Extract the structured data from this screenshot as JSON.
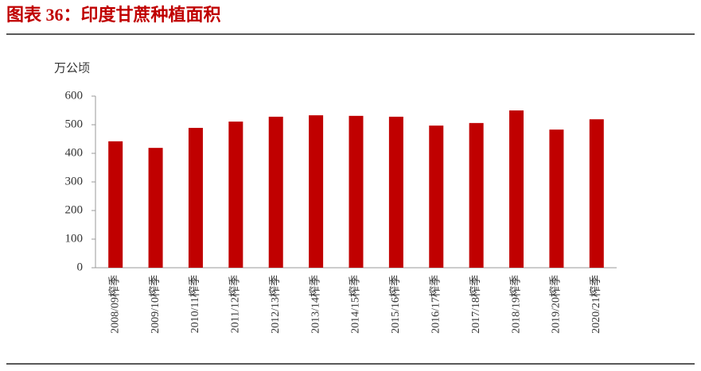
{
  "chart_data": {
    "type": "bar",
    "title": "图表 36：印度甘蔗种植面积",
    "y_label": "万公顷",
    "categories": [
      "2008/09榨季",
      "2009/10榨季",
      "2010/11榨季",
      "2011/12榨季",
      "2012/13榨季",
      "2013/14榨季",
      "2014/15榨季",
      "2015/16榨季",
      "2016/17榨季",
      "2017/18榨季",
      "2018/19榨季",
      "2019/20榨季",
      "2020/21榨季"
    ],
    "values": [
      442,
      419,
      489,
      511,
      528,
      533,
      531,
      528,
      497,
      506,
      550,
      483,
      519
    ],
    "color": "#c00000",
    "ylim": [
      0,
      600
    ],
    "yticks": [
      0,
      100,
      200,
      300,
      400,
      500,
      600
    ],
    "grid": false
  }
}
